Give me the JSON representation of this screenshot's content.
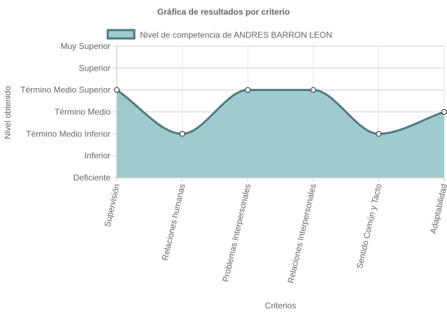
{
  "chart_data": {
    "type": "area",
    "title": "Gráfica de resultados por criterio",
    "xlabel": "Criterios",
    "ylabel": "Nivel obtenido",
    "categories": [
      "Supervisión",
      "Relaciones humanas",
      "Problemas Interpersonales",
      "Relaciones Interpersonales",
      "Sentido Común y Tacto",
      "Adaptabilidad"
    ],
    "y_levels": [
      "Deficiente",
      "Inferior",
      "Término Medio Inferior",
      "Término Medio",
      "Término Medio Superior",
      "Superior",
      "Muy Superior"
    ],
    "ylim": [
      0,
      6
    ],
    "grid": true,
    "legend_position": "top",
    "series": [
      {
        "name": "Nivel de competencia de ANDRES BARRON LEON",
        "values": [
          4,
          2,
          4,
          4,
          2,
          3
        ],
        "line_color": "#4e7a80",
        "fill_color": "#9ecbcf"
      }
    ]
  }
}
